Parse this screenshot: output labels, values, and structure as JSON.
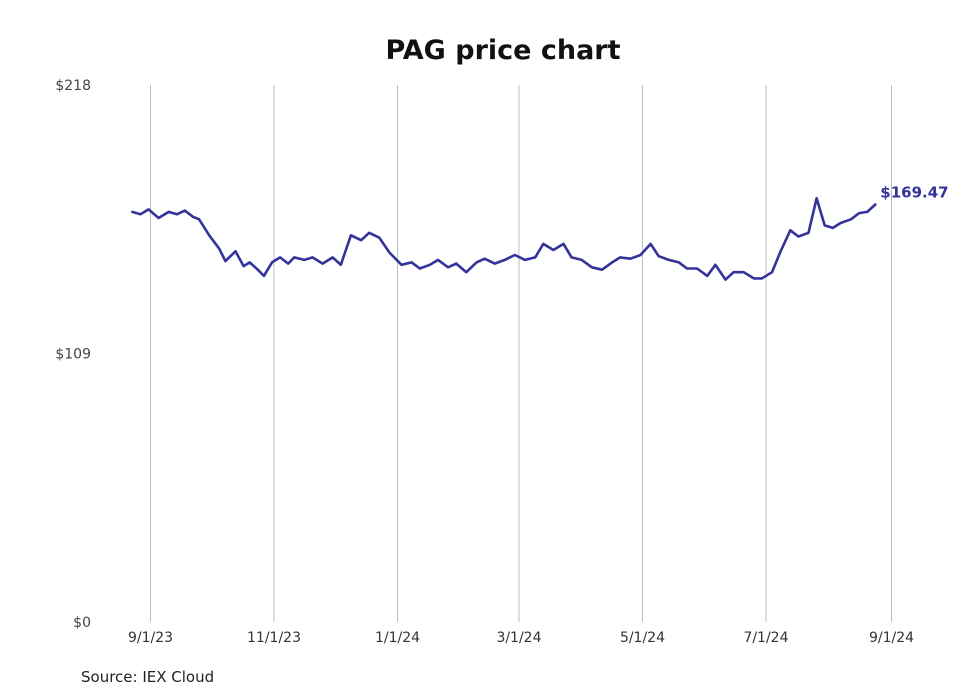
{
  "chart_data": {
    "type": "line",
    "title": "PAG price chart",
    "source": "Source: IEX Cloud",
    "xlabel": "",
    "ylabel": "",
    "ylim": [
      0,
      218
    ],
    "y_ticks": [
      {
        "value": 0,
        "label": "$0"
      },
      {
        "value": 109,
        "label": "$109"
      },
      {
        "value": 218,
        "label": "$218"
      }
    ],
    "x_range": [
      "2023-08-17",
      "2024-09-01"
    ],
    "x_ticks": [
      {
        "date": "2023-09-01",
        "label": "9/1/23"
      },
      {
        "date": "2023-11-01",
        "label": "11/1/23"
      },
      {
        "date": "2024-01-01",
        "label": "1/1/24"
      },
      {
        "date": "2024-03-01",
        "label": "3/1/24"
      },
      {
        "date": "2024-05-01",
        "label": "5/1/24"
      },
      {
        "date": "2024-07-01",
        "label": "7/1/24"
      },
      {
        "date": "2024-09-01",
        "label": "9/1/24"
      }
    ],
    "grid": {
      "vertical": true,
      "horizontal": false
    },
    "line_color": "#333399",
    "last_value_label": "$169.47",
    "series": [
      {
        "x": [
          "2023-08-23",
          "2023-08-27",
          "2023-08-31",
          "2023-09-05",
          "2023-09-10",
          "2023-09-14",
          "2023-09-18",
          "2023-09-22",
          "2023-09-25",
          "2023-09-30",
          "2023-10-05",
          "2023-10-08",
          "2023-10-13",
          "2023-10-17",
          "2023-10-20",
          "2023-10-24",
          "2023-10-27",
          "2023-10-31",
          "2023-11-04",
          "2023-11-08",
          "2023-11-11",
          "2023-11-16",
          "2023-11-20",
          "2023-11-25",
          "2023-11-30",
          "2023-12-04",
          "2023-12-09",
          "2023-12-14",
          "2023-12-18",
          "2023-12-23",
          "2023-12-28",
          "2024-01-03",
          "2024-01-08",
          "2024-01-12",
          "2024-01-17",
          "2024-01-21",
          "2024-01-26",
          "2024-01-30",
          "2024-02-04",
          "2024-02-09",
          "2024-02-13",
          "2024-02-18",
          "2024-02-23",
          "2024-02-28",
          "2024-03-04",
          "2024-03-09",
          "2024-03-13",
          "2024-03-18",
          "2024-03-23",
          "2024-03-27",
          "2024-04-01",
          "2024-04-06",
          "2024-04-11",
          "2024-04-16",
          "2024-04-20",
          "2024-04-25",
          "2024-04-30",
          "2024-05-05",
          "2024-05-09",
          "2024-05-14",
          "2024-05-19",
          "2024-05-23",
          "2024-05-28",
          "2024-06-02",
          "2024-06-06",
          "2024-06-11",
          "2024-06-15",
          "2024-06-20",
          "2024-06-25",
          "2024-06-29",
          "2024-07-04",
          "2024-07-08",
          "2024-07-13",
          "2024-07-17",
          "2024-07-22",
          "2024-07-26",
          "2024-07-30",
          "2024-08-03",
          "2024-08-07",
          "2024-08-12",
          "2024-08-16",
          "2024-08-20",
          "2024-08-24"
        ],
        "values": [
          166.5,
          165.5,
          167.5,
          164,
          166.5,
          165.5,
          167,
          164.5,
          163.5,
          157,
          151.5,
          146.5,
          150.5,
          144.5,
          146,
          143,
          140.5,
          146,
          148,
          145.5,
          148,
          147,
          148,
          145.5,
          148,
          145,
          157,
          155,
          158,
          156,
          150,
          145,
          146,
          143.5,
          145,
          147,
          144,
          145.5,
          142,
          146,
          147.5,
          145.5,
          147,
          149,
          147,
          148,
          153.5,
          151,
          153.5,
          148,
          147,
          144,
          143,
          146,
          148,
          147.5,
          149,
          153.5,
          148.5,
          147,
          146,
          143.5,
          143.5,
          140.5,
          145,
          139,
          142,
          142,
          139.5,
          139.5,
          142,
          150,
          159,
          156.5,
          158,
          172,
          161,
          160,
          162,
          163.5,
          166,
          166.5,
          169.47
        ]
      }
    ]
  }
}
